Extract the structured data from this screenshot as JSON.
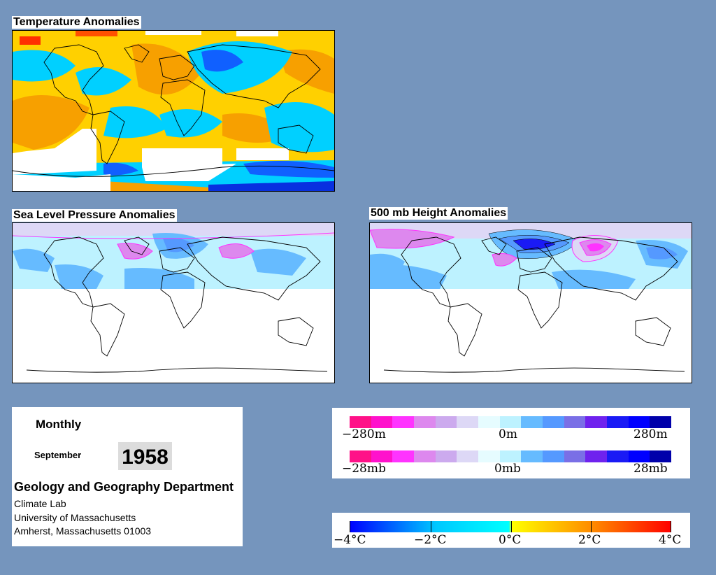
{
  "panels": {
    "temperature": {
      "title": "Temperature Anomalies"
    },
    "slp": {
      "title": "Sea Level Pressure Anomalies"
    },
    "h500": {
      "title": "500 mb Height Anomalies"
    }
  },
  "info": {
    "period": "Monthly",
    "month": "September",
    "year": "1958",
    "department": "Geology and Geography Department",
    "lab": "Climate Lab",
    "university": "University of Massachusetts",
    "address": "Amherst, Massachusetts 01003"
  },
  "legends": {
    "height": {
      "min": "−280m",
      "mid": "0m",
      "max": "280m"
    },
    "pressure": {
      "min": "−28mb",
      "mid": "0mb",
      "max": "28mb"
    },
    "temperature": {
      "labels": [
        "−4°C",
        "−2°C",
        "0°C",
        "2°C",
        "4°C"
      ]
    }
  },
  "colors": {
    "background": "#7595bd",
    "anomaly_scale": [
      "#ff1188",
      "#ff11cc",
      "#ff33ff",
      "#dd88ee",
      "#ccaaee",
      "#ddd8f6",
      "#e6fcff",
      "#bdf2ff",
      "#66bbff",
      "#5599ff",
      "#7a6fe6",
      "#6f22ee",
      "#1a1af5",
      "#0000ff",
      "#0000aa"
    ],
    "temperature_scale": [
      "#0000ff",
      "#00c8ff",
      "#00ffff",
      "#ffff00",
      "#ff8800",
      "#ff0000"
    ],
    "land_outline": "#000000"
  }
}
